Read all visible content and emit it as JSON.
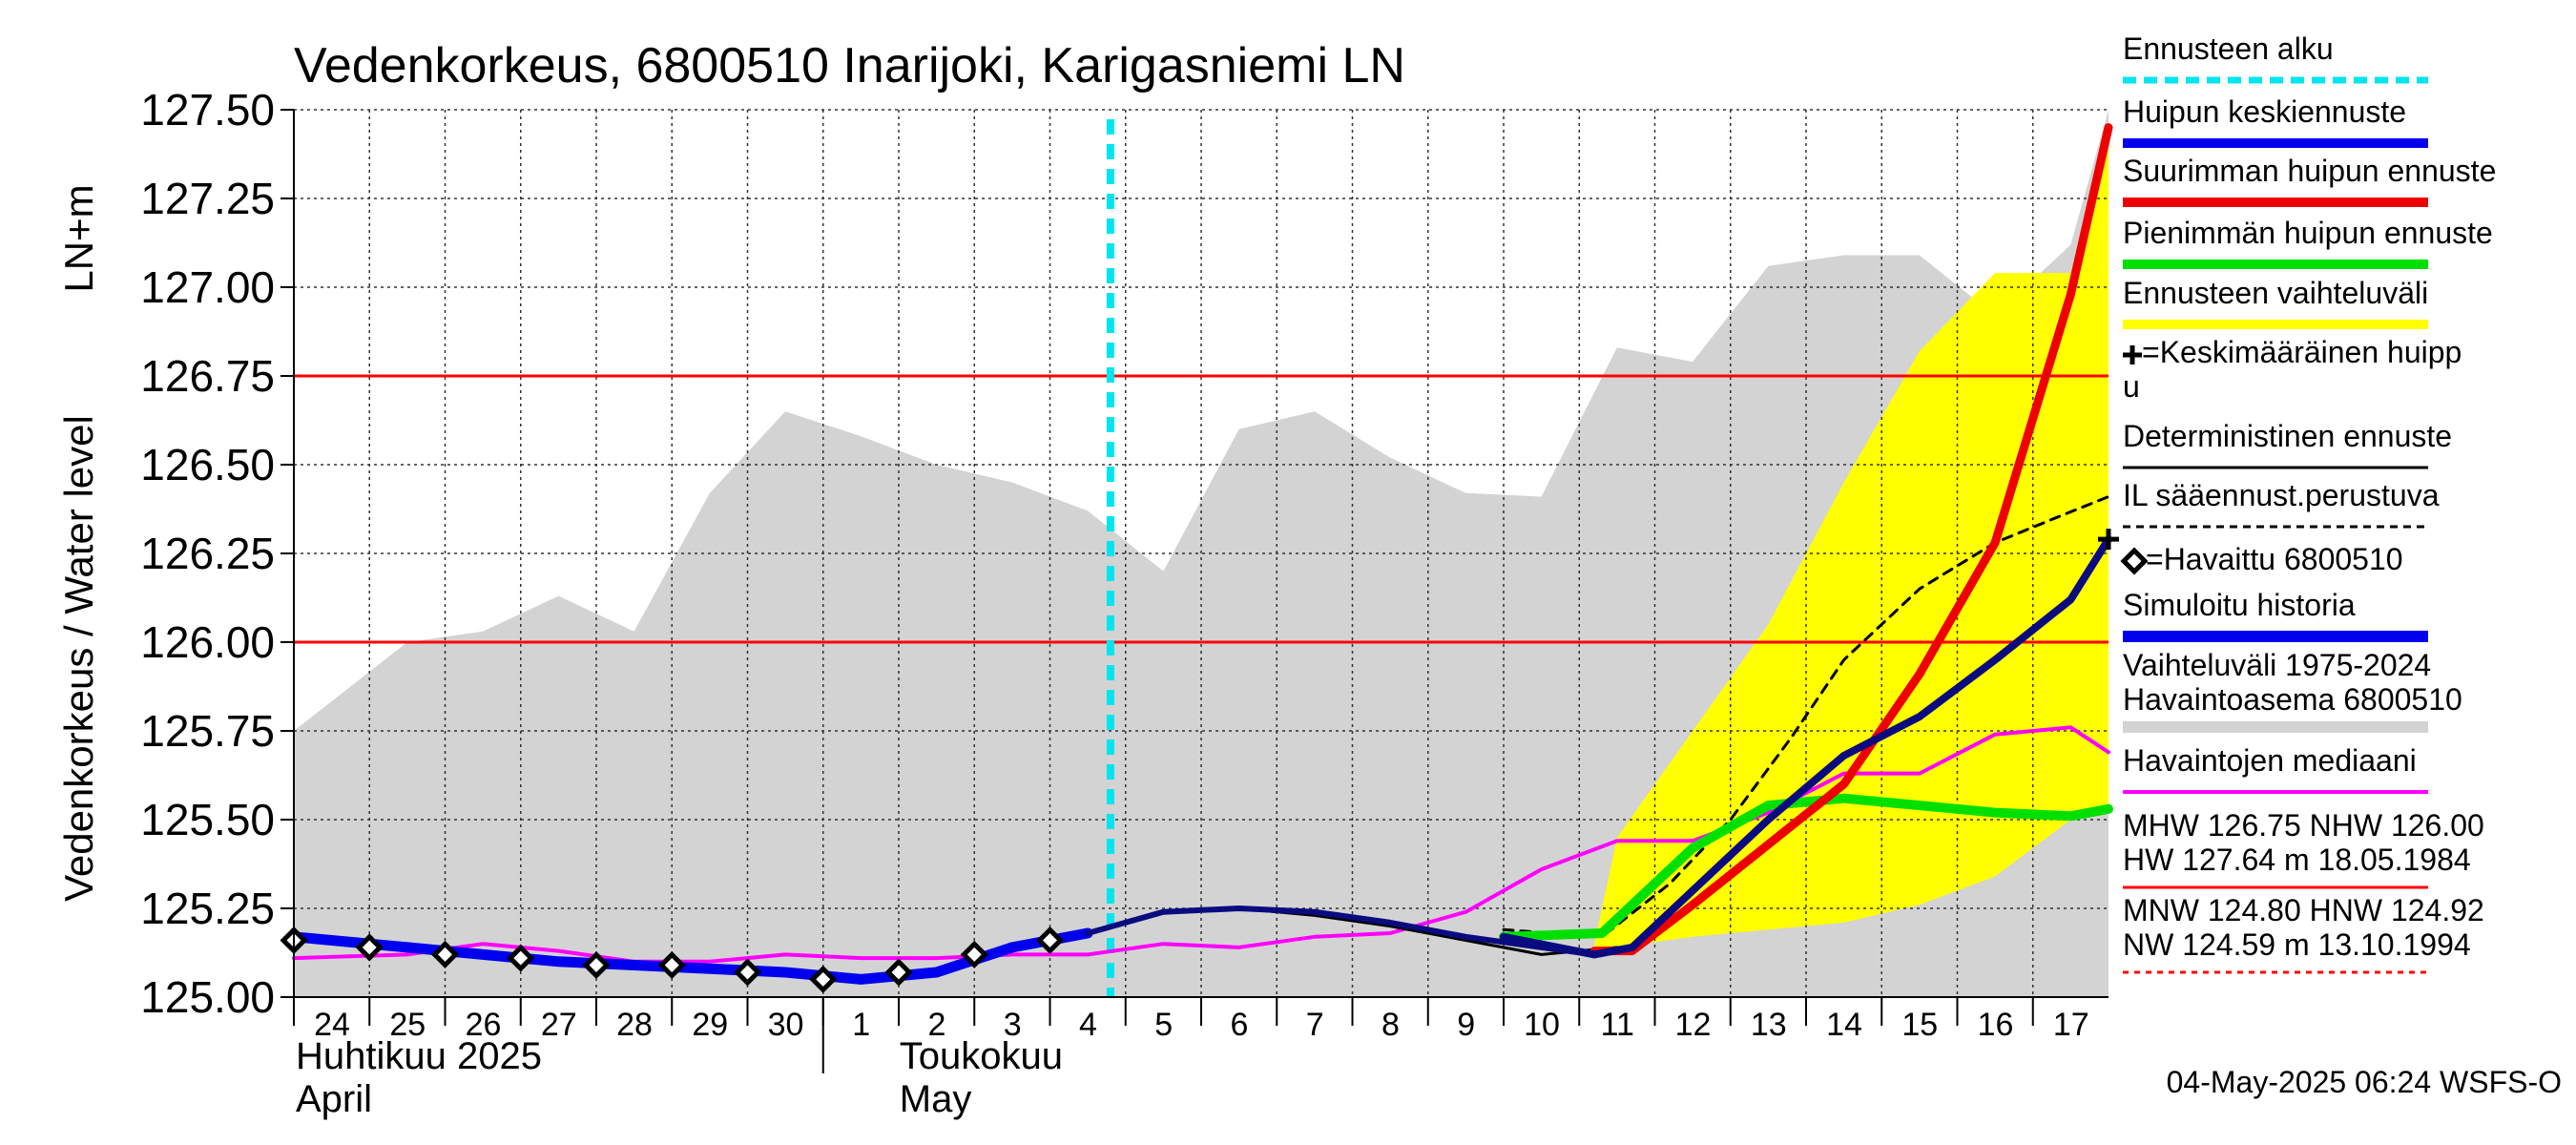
{
  "chart_data": {
    "type": "line",
    "title": "Vedenkorkeus, 6800510 Inarijoki, Karigasniemi LN",
    "ylabel_fi": "LN+m",
    "ylabel": "Vedenkorkeus / Water level",
    "ylim": [
      125.0,
      127.5
    ],
    "yticks": [
      "125.00",
      "125.25",
      "125.50",
      "125.75",
      "126.00",
      "126.25",
      "126.50",
      "126.75",
      "127.00",
      "127.25",
      "127.50"
    ],
    "x_range": [
      -0.5,
      23.5
    ],
    "day_labels": [
      "24",
      "25",
      "26",
      "27",
      "28",
      "29",
      "30",
      "1",
      "2",
      "3",
      "4",
      "5",
      "6",
      "7",
      "8",
      "9",
      "10",
      "11",
      "12",
      "13",
      "14",
      "15",
      "16",
      "17"
    ],
    "month_labels": [
      {
        "fi": "Huhtikuu  2025",
        "en": "April"
      },
      {
        "fi": "Toukokuu",
        "en": "May"
      }
    ],
    "forecast_start": 10.3,
    "hlines": [
      {
        "value": 126.75,
        "color": "#ff0000"
      },
      {
        "value": 126.0,
        "color": "#ff0000"
      }
    ],
    "grid": true,
    "legend_position": "right",
    "series": [
      {
        "name": "Vaihteluväli 1975-2024 Havaintoasema 6800510",
        "kind": "band",
        "color": "#d3d3d3",
        "x": [
          -0.5,
          1,
          2,
          3,
          4,
          5,
          6,
          7,
          8,
          9,
          10,
          11,
          12,
          13,
          14,
          15,
          16,
          17,
          18,
          19,
          20,
          21,
          22,
          23,
          23.5
        ],
        "upper": [
          125.75,
          126.0,
          126.03,
          126.13,
          126.03,
          126.42,
          126.65,
          126.58,
          126.5,
          126.45,
          126.37,
          126.2,
          126.6,
          126.65,
          126.52,
          126.42,
          126.41,
          126.83,
          126.79,
          127.06,
          127.09,
          127.09,
          126.92,
          127.12,
          127.5
        ],
        "lower": [
          125.0,
          125.0,
          125.0,
          125.0,
          125.0,
          125.0,
          125.0,
          125.0,
          125.0,
          125.0,
          125.0,
          125.0,
          125.0,
          125.0,
          125.0,
          125.0,
          125.0,
          125.0,
          125.0,
          125.0,
          125.0,
          125.0,
          125.0,
          125.0,
          125.0
        ]
      },
      {
        "name": "Ennusteen vaihteluväli",
        "kind": "band",
        "color": "#ffff00",
        "x": [
          16.7,
          17,
          18,
          19,
          20,
          21,
          22,
          23,
          23.5
        ],
        "upper": [
          125.15,
          125.45,
          125.75,
          126.05,
          126.45,
          126.82,
          127.04,
          127.04,
          127.45
        ],
        "lower": [
          125.13,
          125.14,
          125.17,
          125.19,
          125.21,
          125.26,
          125.34,
          125.5,
          125.53
        ]
      },
      {
        "name": "Havaintojen mediaani",
        "color": "#ff00ff",
        "x": [
          -0.5,
          1,
          2,
          3,
          4,
          5,
          6,
          7,
          8,
          9,
          10,
          11,
          12,
          13,
          14,
          15,
          16,
          17,
          18,
          19,
          20,
          21,
          22,
          23,
          23.5
        ],
        "y": [
          125.11,
          125.12,
          125.15,
          125.13,
          125.1,
          125.1,
          125.12,
          125.11,
          125.11,
          125.12,
          125.12,
          125.15,
          125.14,
          125.17,
          125.18,
          125.24,
          125.36,
          125.44,
          125.44,
          125.52,
          125.63,
          125.63,
          125.74,
          125.76,
          125.69
        ]
      },
      {
        "name": "Simuloitu historia",
        "color": "#0000ee",
        "width": 11,
        "x": [
          -0.5,
          1,
          2,
          3,
          4,
          5,
          6,
          7,
          8,
          9,
          10
        ],
        "y": [
          125.17,
          125.14,
          125.12,
          125.1,
          125.09,
          125.08,
          125.07,
          125.05,
          125.07,
          125.14,
          125.18
        ]
      },
      {
        "name": "Deterministinen ennuste",
        "color": "#000000",
        "width": 3,
        "x": [
          10,
          11,
          12,
          13,
          14,
          15,
          16,
          17
        ],
        "y": [
          125.18,
          125.24,
          125.25,
          125.23,
          125.2,
          125.16,
          125.12,
          125.14
        ]
      },
      {
        "name": "IL sääennust.perustuva",
        "color": "#000000",
        "width": 3,
        "dashed": true,
        "x": [
          15.5,
          16.8,
          17.7,
          18.5,
          19.3,
          20.0,
          21.0,
          22.0,
          22.8,
          23.5
        ],
        "y": [
          125.19,
          125.17,
          125.32,
          125.5,
          125.73,
          125.95,
          126.15,
          126.28,
          126.35,
          126.41
        ]
      },
      {
        "name": "Pienimmän huipun ennuste",
        "color": "#00e000",
        "width": 10,
        "x": [
          15.5,
          16.8,
          17.2,
          18,
          19,
          20,
          21,
          22,
          23,
          23.5
        ],
        "y": [
          125.17,
          125.18,
          125.26,
          125.42,
          125.54,
          125.56,
          125.54,
          125.52,
          125.51,
          125.53
        ]
      },
      {
        "name": "Suurimman huipun ennuste",
        "color": "#ee0000",
        "width": 9,
        "x": [
          16.7,
          17.2,
          18,
          19,
          20,
          21,
          22,
          23,
          23.5
        ],
        "y": [
          125.13,
          125.13,
          125.26,
          125.43,
          125.6,
          125.91,
          126.28,
          126.98,
          127.45
        ]
      },
      {
        "name": "Huipun keskiennuste",
        "color": "#0b0b80",
        "width": 8,
        "x": [
          15.5,
          16.7,
          17.2,
          18,
          19,
          20,
          21,
          22,
          23,
          23.5
        ],
        "y": [
          125.17,
          125.12,
          125.14,
          125.3,
          125.5,
          125.68,
          125.79,
          125.95,
          126.12,
          126.29
        ]
      },
      {
        "name": "Simuloitu historia (ennuste)",
        "color": "#0b0b80",
        "width": 6,
        "x": [
          10,
          11,
          12,
          13,
          14,
          15,
          16,
          16.7
        ],
        "y": [
          125.18,
          125.24,
          125.25,
          125.24,
          125.21,
          125.17,
          125.14,
          125.12
        ]
      },
      {
        "name": "=Havaittu 6800510",
        "kind": "markers",
        "marker": "diamond",
        "x": [
          -0.5,
          0.5,
          1.5,
          2.5,
          3.5,
          4.5,
          5.5,
          6.5,
          7.5,
          8.5,
          9.5
        ],
        "y": [
          125.16,
          125.14,
          125.12,
          125.11,
          125.09,
          125.09,
          125.07,
          125.05,
          125.07,
          125.12,
          125.16
        ]
      },
      {
        "name": "=Keskimääräinen huippu",
        "kind": "markers",
        "marker": "plus",
        "x": [
          23.5
        ],
        "y": [
          126.29
        ]
      }
    ]
  },
  "legend": [
    {
      "label": "Ennusteen alku",
      "color": "#00e5ee",
      "style": "dashed",
      "width": 7
    },
    {
      "label": "Huipun keskiennuste",
      "color": "#0000ee",
      "style": "solid",
      "width": 10
    },
    {
      "label": "Suurimman huipun ennuste",
      "color": "#ee0000",
      "style": "solid",
      "width": 10
    },
    {
      "label": "Pienimmän huipun ennuste",
      "color": "#00e000",
      "style": "solid",
      "width": 10
    },
    {
      "label": "Ennusteen vaihteluväli",
      "color": "#ffff00",
      "style": "solid",
      "width": 10
    },
    {
      "label": "=Keskimääräinen huipp",
      "label2": "u",
      "marker": "plus"
    },
    {
      "label": "Deterministinen ennuste",
      "color": "#000000",
      "style": "solid",
      "width": 3
    },
    {
      "label": "IL sääennust.perustuva",
      "color": "#000000",
      "style": "dashed",
      "width": 3
    },
    {
      "label": "=Havaittu 6800510",
      "marker": "diamond"
    },
    {
      "label": "Simuloitu historia",
      "color": "#0000ee",
      "style": "solid",
      "width": 12
    },
    {
      "label": "Vaihteluväli 1975-2024",
      "label2": " Havaintoasema 6800510",
      "color": "#d3d3d3",
      "style": "solid",
      "width": 12
    },
    {
      "label": "Havaintojen mediaani",
      "color": "#ff00ff",
      "style": "solid",
      "width": 4
    },
    {
      "label": "MHW 126.75 NHW 126.00",
      "label2": "HW 127.64 m 18.05.1984",
      "color": "#ff0000",
      "style": "solid",
      "width": 3
    },
    {
      "label": "MNW 124.80 HNW 124.92",
      "label2": "NW 124.59 m 13.10.1994",
      "color": "#ff0000",
      "style": "dotted",
      "width": 3
    }
  ],
  "footer": "04-May-2025 06:24 WSFS-O"
}
